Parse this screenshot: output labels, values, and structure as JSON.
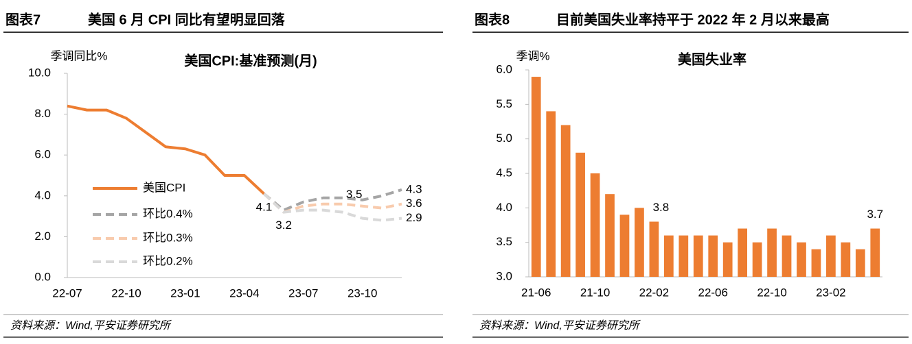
{
  "chart_data": [
    {
      "type": "line",
      "figure": "图表7",
      "heading": "美国 6 月 CPI 同比有望明显回落",
      "title": "美国CPI:基准预测(月)",
      "y_label": "季调同比%",
      "source": "资料来源：Wind,平安证券研究所",
      "categories": [
        "22-07",
        null,
        null,
        "22-10",
        null,
        null,
        "23-01",
        null,
        null,
        "23-04",
        null,
        null,
        "23-07",
        null,
        null,
        "23-10",
        null,
        null
      ],
      "series": [
        {
          "name": "美国CPI",
          "color": "#ED7D31",
          "style": "solid",
          "show_labels": [
            10
          ],
          "values": [
            8.4,
            8.2,
            8.2,
            7.8,
            7.1,
            6.4,
            6.3,
            6.0,
            5.0,
            5.0,
            4.1,
            null,
            null,
            null,
            null,
            null,
            null,
            null
          ]
        },
        {
          "name": "环比0.4%",
          "color": "#A5A5A5",
          "style": "dashed",
          "show_labels": [
            17
          ],
          "values": [
            null,
            null,
            null,
            null,
            null,
            null,
            null,
            null,
            null,
            null,
            4.1,
            3.3,
            3.7,
            3.9,
            3.9,
            3.8,
            4.0,
            4.3
          ]
        },
        {
          "name": "环比0.3%",
          "color": "#F8CBAD",
          "style": "dashed",
          "show_labels": [
            11,
            15,
            17
          ],
          "values": [
            null,
            null,
            null,
            null,
            null,
            null,
            null,
            null,
            null,
            null,
            4.1,
            3.2,
            3.5,
            3.6,
            3.6,
            3.5,
            3.4,
            3.6
          ]
        },
        {
          "name": "环比0.2%",
          "color": "#D9D9D9",
          "style": "dashed",
          "show_labels": [
            17
          ],
          "values": [
            null,
            null,
            null,
            null,
            null,
            null,
            null,
            null,
            null,
            null,
            4.1,
            3.2,
            3.3,
            3.3,
            3.2,
            2.9,
            2.8,
            2.9
          ]
        }
      ],
      "ylim": [
        0,
        10
      ],
      "yticks": [
        {
          "value": 0,
          "label": "0.0"
        },
        {
          "value": 2,
          "label": "2.0"
        },
        {
          "value": 4,
          "label": "4.0"
        },
        {
          "value": 6,
          "label": "6.0"
        },
        {
          "value": 8,
          "label": "8.0"
        },
        {
          "value": 10,
          "label": "10.0"
        }
      ],
      "legend": "lower left",
      "grid": false
    },
    {
      "type": "bar",
      "figure": "图表8",
      "heading": "目前美国失业率持平于 2022 年 2 月以来最高",
      "title": "美国失业率",
      "y_label": "季调%",
      "source": "资料来源：Wind,平安证券研究所",
      "categories": [
        "21-06",
        null,
        null,
        null,
        "21-10",
        null,
        null,
        null,
        "22-02",
        null,
        null,
        null,
        "22-06",
        null,
        null,
        null,
        "22-10",
        null,
        null,
        null,
        "23-02",
        null,
        null,
        null
      ],
      "series": [
        {
          "name": null,
          "color": "#ED7D31",
          "show_labels": [
            8,
            23
          ],
          "values": [
            5.9,
            5.4,
            5.2,
            4.8,
            4.5,
            4.2,
            3.9,
            4.0,
            3.8,
            3.6,
            3.6,
            3.6,
            3.6,
            3.5,
            3.7,
            3.5,
            3.7,
            3.6,
            3.5,
            3.4,
            3.6,
            3.5,
            3.4,
            3.7
          ]
        }
      ],
      "ylim": [
        3.0,
        6.0
      ],
      "yticks": [
        {
          "value": 3.0,
          "label": "3.0"
        },
        {
          "value": 3.5,
          "label": "3.5"
        },
        {
          "value": 4.0,
          "label": "4.0"
        },
        {
          "value": 4.5,
          "label": "4.5"
        },
        {
          "value": 5.0,
          "label": "5.0"
        },
        {
          "value": 5.5,
          "label": "5.5"
        },
        {
          "value": 6.0,
          "label": "6.0"
        }
      ],
      "grid": false
    }
  ]
}
